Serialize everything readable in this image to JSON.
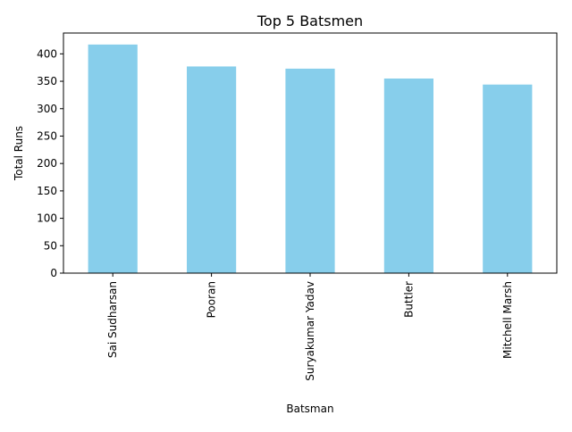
{
  "chart_data": {
    "type": "bar",
    "title": "Top 5 Batsmen",
    "xlabel": "Batsman",
    "ylabel": "Total Runs",
    "categories": [
      "Sai Sudharsan",
      "Pooran",
      "Suryakumar Yadav",
      "Buttler",
      "Mitchell Marsh"
    ],
    "values": [
      417,
      377,
      373,
      355,
      344
    ],
    "ylim": [
      0,
      438
    ],
    "yticks": [
      0,
      50,
      100,
      150,
      200,
      250,
      300,
      350,
      400
    ],
    "bar_color": "#87CEEB",
    "grid": false,
    "legend": "none"
  }
}
